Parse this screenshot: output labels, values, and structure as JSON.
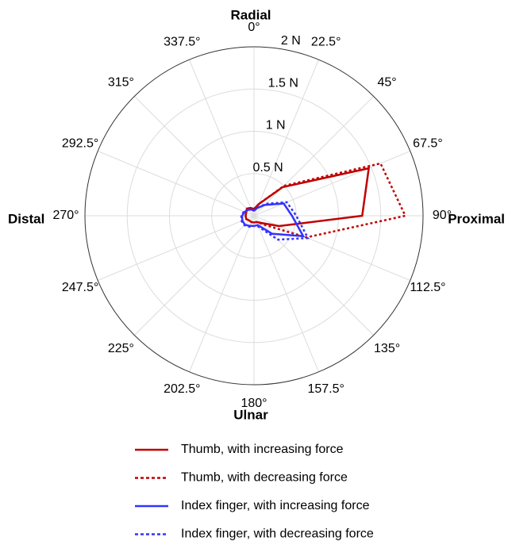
{
  "chart_data": {
    "type": "polar",
    "direction_labels": {
      "top": "Radial",
      "bottom": "Ulnar",
      "left": "Distal",
      "right": "Proximal"
    },
    "rlim": [
      0,
      2
    ],
    "rticks": [
      {
        "value": 0.5,
        "label": "0.5 N"
      },
      {
        "value": 1,
        "label": "1 N"
      },
      {
        "value": 1.5,
        "label": "1.5 N"
      },
      {
        "value": 2,
        "label": "2 N"
      }
    ],
    "thetaticks": [
      {
        "value": 0,
        "label": "0°"
      },
      {
        "value": 22.5,
        "label": "22.5°"
      },
      {
        "value": 45,
        "label": "45°"
      },
      {
        "value": 67.5,
        "label": "67.5°"
      },
      {
        "value": 90,
        "label": "90°"
      },
      {
        "value": 112.5,
        "label": "112.5°"
      },
      {
        "value": 135,
        "label": "135°"
      },
      {
        "value": 157.5,
        "label": "157.5°"
      },
      {
        "value": 180,
        "label": "180°"
      },
      {
        "value": 202.5,
        "label": "202.5°"
      },
      {
        "value": 225,
        "label": "225°"
      },
      {
        "value": 247.5,
        "label": "247.5°"
      },
      {
        "value": 270,
        "label": "270°"
      },
      {
        "value": 292.5,
        "label": "292.5°"
      },
      {
        "value": 315,
        "label": "315°"
      },
      {
        "value": 337.5,
        "label": "337.5°"
      }
    ],
    "series": [
      {
        "name": "Thumb, with increasing force",
        "color": "#c00000",
        "dash": "solid",
        "values": [
          0.08,
          0.15,
          0.48,
          1.47,
          1.28,
          0.32,
          0.12,
          0.08,
          0.08,
          0.08,
          0.08,
          0.1,
          0.1,
          0.1,
          0.12,
          0.1
        ]
      },
      {
        "name": "Thumb, with decreasing force",
        "color": "#c00000",
        "dash": "dotted",
        "values": [
          0.08,
          0.15,
          0.5,
          1.62,
          1.79,
          0.67,
          0.14,
          0.08,
          0.08,
          0.08,
          0.08,
          0.1,
          0.1,
          0.1,
          0.12,
          0.1
        ]
      },
      {
        "name": "Index finger, with increasing force",
        "color": "#3333ff",
        "dash": "solid",
        "values": [
          0.06,
          0.1,
          0.18,
          0.38,
          0.45,
          0.63,
          0.3,
          0.12,
          0.12,
          0.13,
          0.15,
          0.15,
          0.14,
          0.12,
          0.1,
          0.08
        ]
      },
      {
        "name": "Index finger, with decreasing force",
        "color": "#3333ff",
        "dash": "dotted",
        "values": [
          0.06,
          0.1,
          0.2,
          0.42,
          0.5,
          0.69,
          0.4,
          0.14,
          0.12,
          0.14,
          0.16,
          0.16,
          0.15,
          0.13,
          0.1,
          0.08
        ]
      }
    ],
    "grid": true
  }
}
